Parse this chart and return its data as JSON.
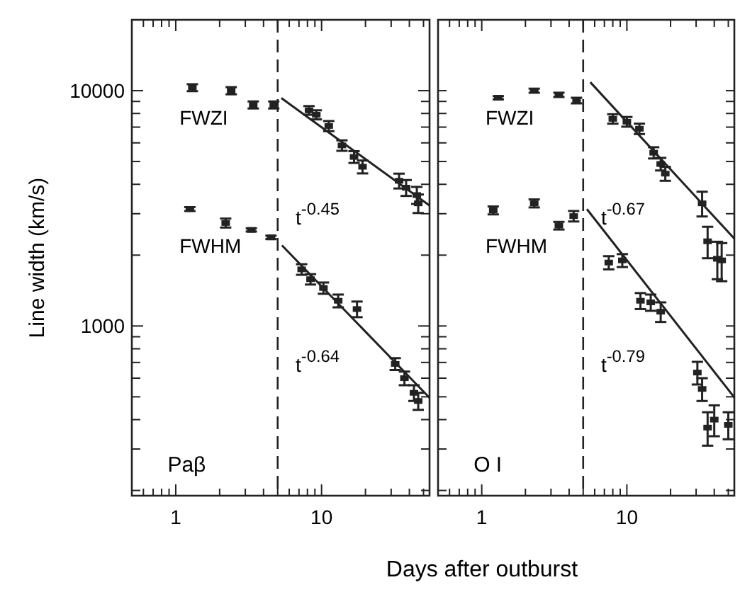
{
  "chart_data": [
    {
      "type": "scatter",
      "ylabel": "Line width (km/s)",
      "log": "xy",
      "marker": "square",
      "grid": false,
      "xlim": [
        0.5,
        55
      ],
      "ylim": [
        190,
        20000
      ],
      "xticks": [
        {
          "value": 0.5,
          "label": null
        },
        {
          "value": 0.6,
          "label": null
        },
        {
          "value": 0.7,
          "label": null
        },
        {
          "value": 0.8,
          "label": null
        },
        {
          "value": 0.9,
          "label": null
        },
        {
          "value": 1,
          "label": "1"
        },
        {
          "value": 2,
          "label": null
        },
        {
          "value": 3,
          "label": null
        },
        {
          "value": 4,
          "label": null
        },
        {
          "value": 5,
          "label": null
        },
        {
          "value": 6,
          "label": null
        },
        {
          "value": 7,
          "label": null
        },
        {
          "value": 8,
          "label": null
        },
        {
          "value": 9,
          "label": null
        },
        {
          "value": 10,
          "label": "10"
        },
        {
          "value": 20,
          "label": null
        },
        {
          "value": 30,
          "label": null
        },
        {
          "value": 40,
          "label": null
        },
        {
          "value": 50,
          "label": null
        }
      ],
      "yticks": [
        {
          "value": 200,
          "label": null
        },
        {
          "value": 300,
          "label": null
        },
        {
          "value": 400,
          "label": null
        },
        {
          "value": 500,
          "label": null
        },
        {
          "value": 600,
          "label": null
        },
        {
          "value": 700,
          "label": null
        },
        {
          "value": 800,
          "label": null
        },
        {
          "value": 900,
          "label": null
        },
        {
          "value": 1000,
          "label": "1000"
        },
        {
          "value": 2000,
          "label": null
        },
        {
          "value": 3000,
          "label": null
        },
        {
          "value": 4000,
          "label": null
        },
        {
          "value": 5000,
          "label": null
        },
        {
          "value": 6000,
          "label": null
        },
        {
          "value": 7000,
          "label": null
        },
        {
          "value": 8000,
          "label": null
        },
        {
          "value": 9000,
          "label": null
        },
        {
          "value": 10000,
          "label": "10000"
        }
      ],
      "ref_lines": [
        {
          "axis": "x",
          "value": 5,
          "line_style": "dashed",
          "color": "#222222"
        }
      ],
      "series": [
        {
          "color": "#222222",
          "x": [
            1.3,
            2.4,
            3.4,
            4.7,
            8.2,
            9.2,
            11.2,
            13.8,
            16.7,
            19.1,
            34,
            38,
            45,
            46
          ],
          "values": [
            10300,
            10000,
            8700,
            8700,
            8250,
            7900,
            7080,
            5850,
            5230,
            4750,
            4140,
            3870,
            3600,
            3320
          ],
          "errors": [
            350,
            350,
            300,
            300,
            350,
            350,
            350,
            300,
            300,
            300,
            300,
            300,
            300,
            300
          ]
        },
        {
          "color": "#222222",
          "x": [
            1.25,
            2.2,
            3.3,
            4.5,
            7.3,
            8.4,
            10.3,
            13,
            17.5,
            32,
            37,
            43,
            46
          ],
          "values": [
            3140,
            2740,
            2560,
            2380,
            1740,
            1580,
            1450,
            1280,
            1180,
            690,
            600,
            520,
            480
          ],
          "errors": [
            60,
            120,
            40,
            40,
            90,
            80,
            80,
            80,
            90,
            40,
            40,
            40,
            40
          ]
        },
        {
          "type": "line",
          "color": "#222222",
          "line_style": "solid",
          "marker": "none",
          "x": [
            5.3,
            55
          ],
          "values": [
            9300,
            3250
          ]
        },
        {
          "type": "line",
          "color": "#222222",
          "line_style": "solid",
          "marker": "none",
          "x": [
            5.35,
            55
          ],
          "values": [
            2200,
            495
          ]
        }
      ],
      "annotations": [
        "FWZI",
        "FWHM",
        "t$^{-0.45}$",
        "t$^{-0.64}$",
        "Paβ"
      ]
    },
    {
      "type": "scatter",
      "xlabel": "Days after outburst",
      "log": "xy",
      "marker": "square",
      "grid": false,
      "tick_labels": "x",
      "xlim": [
        0.5,
        55
      ],
      "ylim": [
        190,
        20000
      ],
      "xticks": [
        {
          "value": 0.5,
          "label": null
        },
        {
          "value": 0.6,
          "label": null
        },
        {
          "value": 0.7,
          "label": null
        },
        {
          "value": 0.8,
          "label": null
        },
        {
          "value": 0.9,
          "label": null
        },
        1,
        {
          "value": 2,
          "label": null
        },
        {
          "value": 3,
          "label": null
        },
        {
          "value": 4,
          "label": null
        },
        {
          "value": 5,
          "label": null
        },
        {
          "value": 6,
          "label": null
        },
        {
          "value": 7,
          "label": null
        },
        {
          "value": 8,
          "label": null
        },
        {
          "value": 9,
          "label": null
        },
        10,
        {
          "value": 20,
          "label": null
        },
        {
          "value": 30,
          "label": null
        },
        {
          "value": 40,
          "label": null
        },
        {
          "value": 50,
          "label": null
        }
      ],
      "yticks": [
        {
          "value": 200,
          "label": null
        },
        {
          "value": 300,
          "label": null
        },
        {
          "value": 400,
          "label": null
        },
        {
          "value": 500,
          "label": null
        },
        {
          "value": 600,
          "label": null
        },
        {
          "value": 700,
          "label": null
        },
        {
          "value": 800,
          "label": null
        },
        {
          "value": 900,
          "label": null
        },
        {
          "value": 1000,
          "label": null
        },
        {
          "value": 2000,
          "label": null
        },
        {
          "value": 3000,
          "label": null
        },
        {
          "value": 4000,
          "label": null
        },
        {
          "value": 5000,
          "label": null
        },
        {
          "value": 6000,
          "label": null
        },
        {
          "value": 7000,
          "label": null
        },
        {
          "value": 8000,
          "label": null
        },
        {
          "value": 9000,
          "label": null
        },
        {
          "value": 10000,
          "label": null
        }
      ],
      "ref_lines": [
        {
          "axis": "x",
          "value": 5,
          "line_style": "dashed",
          "color": "#222222"
        }
      ],
      "series": [
        {
          "color": "#222222",
          "x": [
            1.3,
            2.3,
            3.4,
            4.5,
            8.0,
            10,
            12.2,
            15.3,
            17.1,
            18.4,
            33,
            36,
            42,
            45
          ],
          "values": [
            9330,
            10000,
            9600,
            9080,
            7590,
            7380,
            6890,
            5450,
            4880,
            4440,
            3320,
            2290,
            1930,
            1900
          ],
          "errors": [
            150,
            200,
            200,
            250,
            350,
            350,
            350,
            300,
            300,
            300,
            400,
            350,
            350,
            350
          ]
        },
        {
          "color": "#222222",
          "x": [
            1.2,
            2.3,
            3.4,
            4.3,
            7.5,
            9.3,
            12.4,
            14.6,
            17.1,
            30.6,
            33,
            36,
            40,
            50
          ],
          "values": [
            3100,
            3320,
            2670,
            2930,
            1860,
            1900,
            1280,
            1260,
            1150,
            634,
            540,
            370,
            400,
            380
          ],
          "errors": [
            120,
            130,
            100,
            150,
            120,
            120,
            100,
            100,
            110,
            70,
            60,
            60,
            60,
            50
          ]
        },
        {
          "type": "line",
          "color": "#222222",
          "line_style": "solid",
          "marker": "none",
          "x": [
            5.6,
            55
          ],
          "values": [
            10860,
            2350
          ]
        },
        {
          "type": "line",
          "color": "#222222",
          "line_style": "solid",
          "marker": "none",
          "x": [
            5.3,
            55
          ],
          "values": [
            3140,
            497
          ]
        }
      ],
      "annotations": [
        "FWZI",
        "FWHM",
        "t$^{-0.67}$",
        "t$^{-0.79}$",
        "O I"
      ]
    }
  ]
}
